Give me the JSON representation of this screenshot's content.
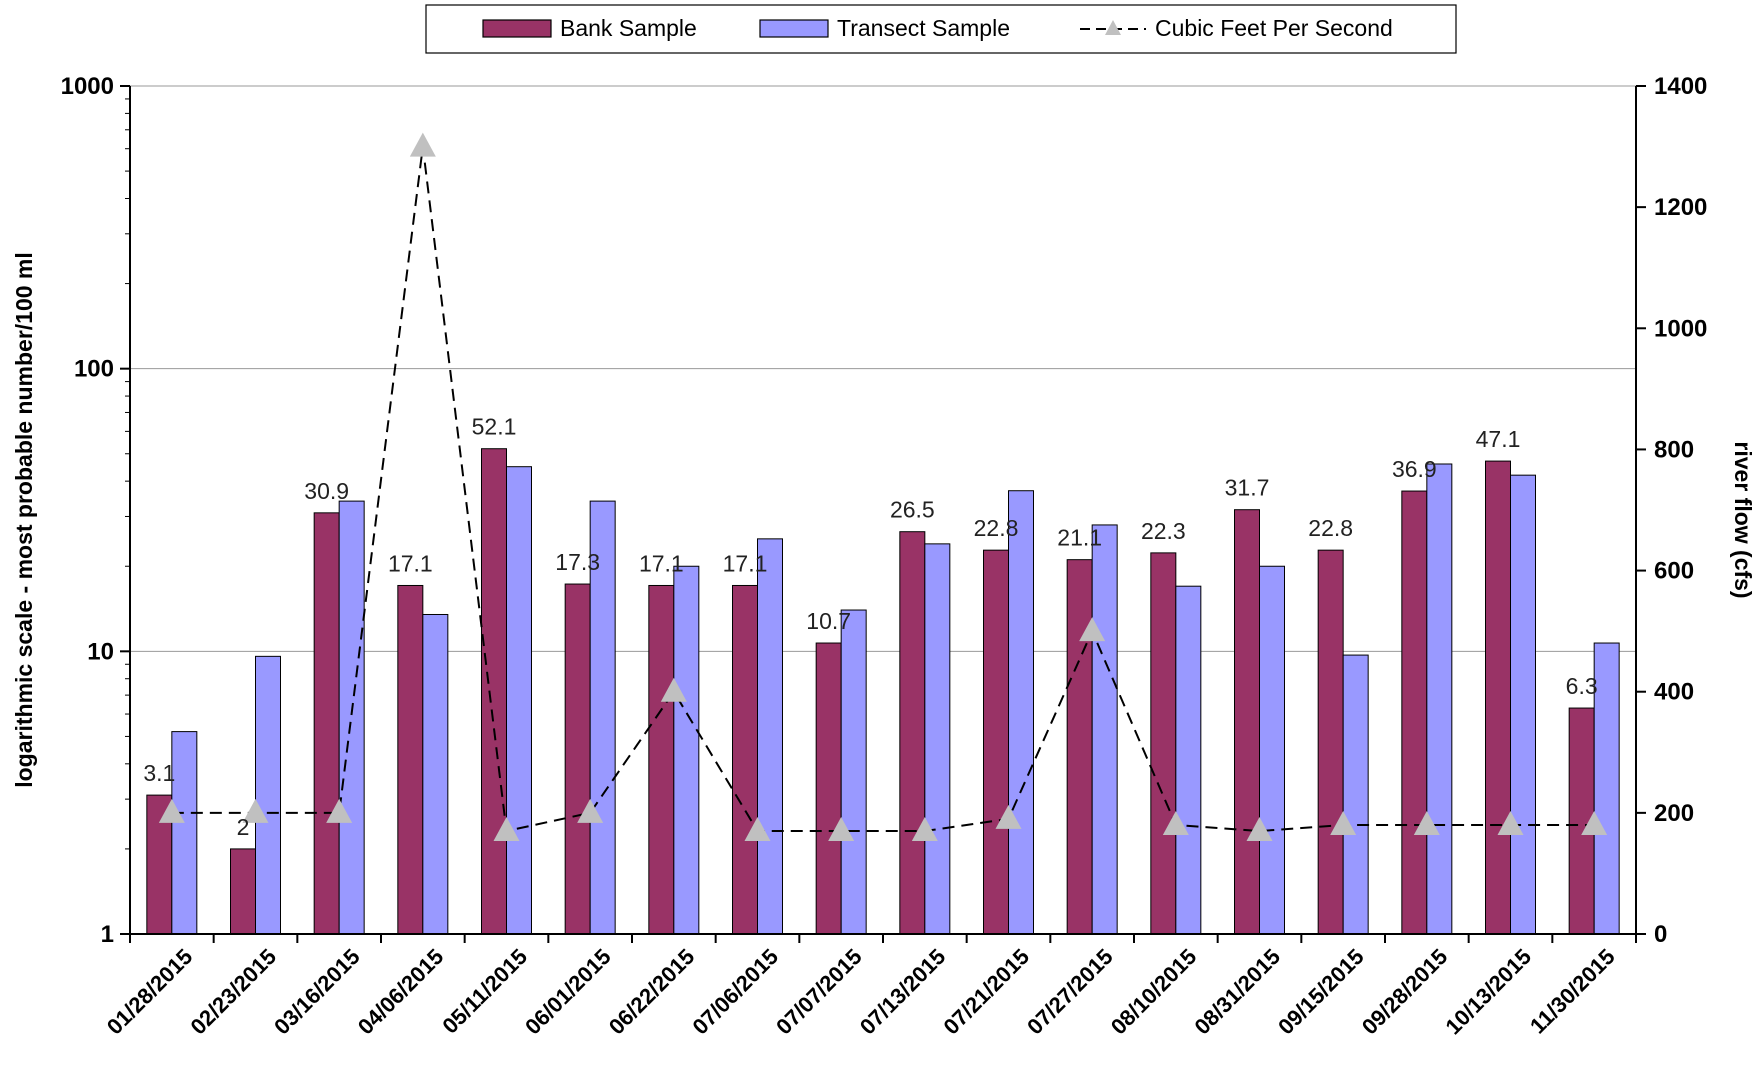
{
  "chart_data": {
    "type": "bar",
    "categories": [
      "01/28/2015",
      "02/23/2015",
      "03/16/2015",
      "04/06/2015",
      "05/11/2015",
      "06/01/2015",
      "06/22/2015",
      "07/06/2015",
      "07/07/2015",
      "07/13/2015",
      "07/21/2015",
      "07/27/2015",
      "08/10/2015",
      "08/31/2015",
      "09/15/2015",
      "09/28/2015",
      "10/13/2015",
      "11/30/2015"
    ],
    "series": [
      {
        "name": "Bank Sample",
        "kind": "bar",
        "axis": "left",
        "color": "#993366",
        "values": [
          3.1,
          2,
          30.9,
          17.1,
          52.1,
          17.3,
          17.1,
          17.1,
          10.7,
          26.5,
          22.8,
          21.1,
          22.3,
          31.7,
          22.8,
          36.9,
          47.1,
          6.3
        ],
        "labels": [
          "3.1",
          "2",
          "30.9",
          "17.1",
          "52.1",
          "17.3",
          "17.1",
          "17.1",
          "10.7",
          "26.5",
          "22.8",
          "21.1",
          "22.3",
          "31.7",
          "22.8",
          "36.9",
          "47.1",
          "6.3"
        ]
      },
      {
        "name": "Transect Sample",
        "kind": "bar",
        "axis": "left",
        "color": "#9999FF",
        "values": [
          5.2,
          9.6,
          34,
          13.5,
          45,
          34,
          20,
          25,
          14,
          24,
          37,
          28,
          17,
          20,
          9.7,
          46,
          42,
          10.7
        ]
      },
      {
        "name": "Cubic Feet Per Second",
        "kind": "line",
        "axis": "right",
        "color": "#C0C0C0",
        "values": [
          200,
          200,
          200,
          1300,
          170,
          200,
          400,
          170,
          170,
          170,
          190,
          500,
          180,
          170,
          180,
          180,
          180,
          180
        ]
      }
    ],
    "ylabel": "logarithmic scale - most probable number/100 ml",
    "y2label": "river flow (cfs)",
    "yscale": "log",
    "ylim": [
      1,
      1000
    ],
    "yticks": [
      "1",
      "10",
      "100",
      "1000"
    ],
    "y2lim": [
      0,
      1400
    ],
    "y2ticks": [
      "0",
      "200",
      "400",
      "600",
      "800",
      "1000",
      "1200",
      "1400"
    ],
    "grid": true,
    "legend": "top"
  }
}
